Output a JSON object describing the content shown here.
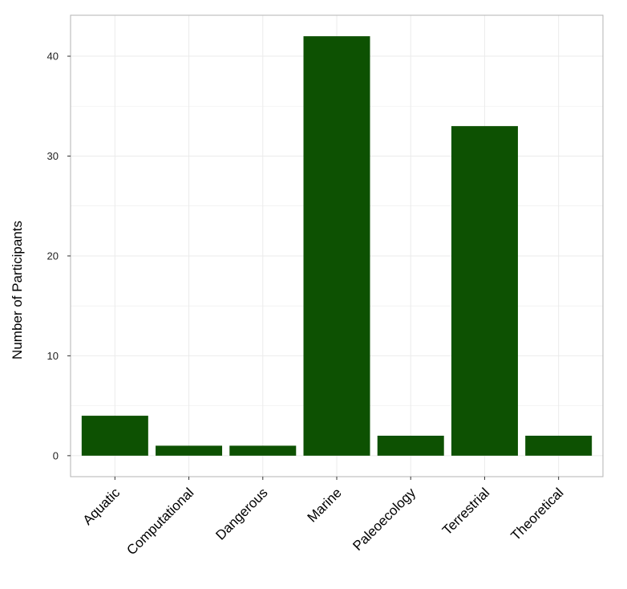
{
  "chart_data": {
    "type": "bar",
    "title": "",
    "xlabel": "",
    "ylabel": "Number of Participants",
    "categories": [
      "Aquatic",
      "Computational",
      "Dangerous",
      "Marine",
      "Paleoecology",
      "Terrestrial",
      "Theoretical"
    ],
    "values": [
      4,
      1,
      1,
      42,
      2,
      33,
      2
    ],
    "ylim": [
      -2.1,
      44.1
    ],
    "yticks": [
      0,
      10,
      20,
      30,
      40
    ],
    "ytick_labels": [
      "0",
      "10",
      "20",
      "30",
      "40"
    ],
    "grid": true,
    "legend": "none",
    "colors": {
      "bar": "#0d5102",
      "grid": "#ebebeb",
      "panel_border": "#b3b3b3",
      "background": "#ffffff"
    }
  }
}
